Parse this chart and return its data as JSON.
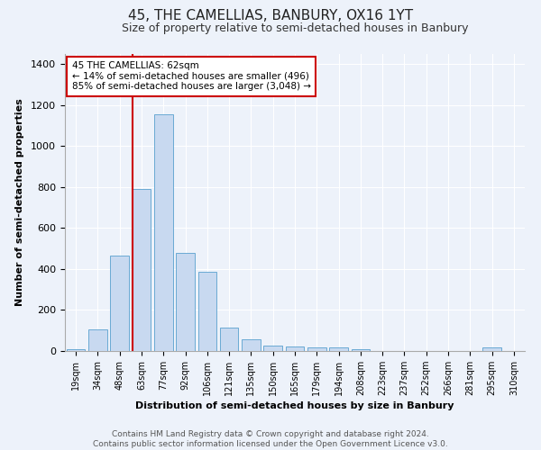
{
  "title": "45, THE CAMELLIAS, BANBURY, OX16 1YT",
  "subtitle": "Size of property relative to semi-detached houses in Banbury",
  "xlabel": "Distribution of semi-detached houses by size in Banbury",
  "ylabel": "Number of semi-detached properties",
  "categories": [
    "19sqm",
    "34sqm",
    "48sqm",
    "63sqm",
    "77sqm",
    "92sqm",
    "106sqm",
    "121sqm",
    "135sqm",
    "150sqm",
    "165sqm",
    "179sqm",
    "194sqm",
    "208sqm",
    "223sqm",
    "237sqm",
    "252sqm",
    "266sqm",
    "281sqm",
    "295sqm",
    "310sqm"
  ],
  "values": [
    8,
    105,
    465,
    790,
    1155,
    480,
    385,
    115,
    55,
    25,
    20,
    18,
    18,
    10,
    0,
    0,
    0,
    0,
    0,
    18,
    0
  ],
  "bar_color": "#c8d9f0",
  "bar_edge_color": "#6aaad4",
  "vline_x_index": 3,
  "vline_color": "#cc0000",
  "annotation_text": "45 THE CAMELLIAS: 62sqm\n← 14% of semi-detached houses are smaller (496)\n85% of semi-detached houses are larger (3,048) →",
  "annotation_box_color": "#ffffff",
  "annotation_box_edge": "#cc0000",
  "ylim": [
    0,
    1450
  ],
  "yticks": [
    0,
    200,
    400,
    600,
    800,
    1000,
    1200,
    1400
  ],
  "footer1": "Contains HM Land Registry data © Crown copyright and database right 2024.",
  "footer2": "Contains public sector information licensed under the Open Government Licence v3.0.",
  "bg_color": "#edf2fa",
  "plot_bg_color": "#edf2fa",
  "title_fontsize": 11,
  "subtitle_fontsize": 9,
  "axis_label_fontsize": 8,
  "tick_fontsize": 7,
  "annotation_fontsize": 7.5,
  "footer_fontsize": 6.5
}
